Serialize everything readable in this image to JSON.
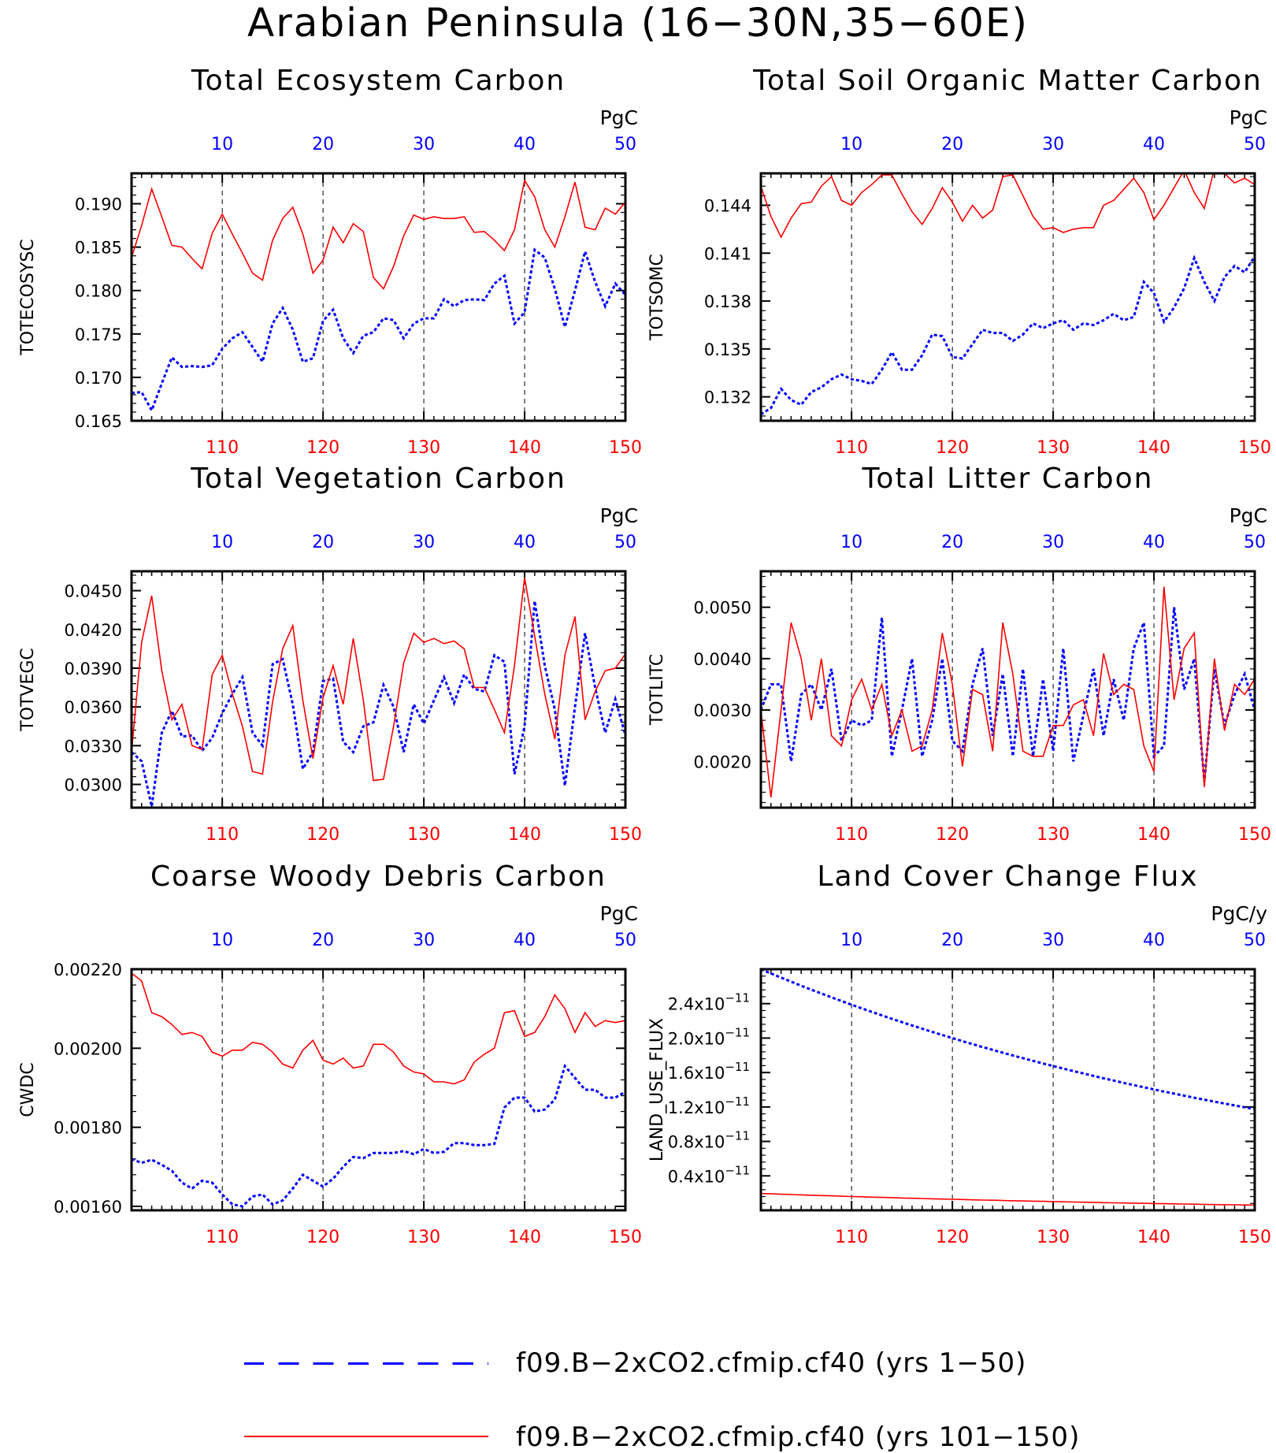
{
  "page_title": "Arabian Peninsula (16−30N,35−60E)",
  "colors": {
    "blue": "#0000ff",
    "red": "#ff0000",
    "grid": "#000000"
  },
  "legend": [
    {
      "label": "f09.B−2xCO2.cfmip.cf40 (yrs 1−50)",
      "color": "#0000ff",
      "style": "dashed"
    },
    {
      "label": "f09.B−2xCO2.cfmip.cf40 (yrs 101−150)",
      "color": "#ff0000",
      "style": "solid"
    }
  ],
  "chart_data": [
    {
      "type": "line",
      "title": "Total Ecosystem Carbon",
      "ylabel": "TOTECOSYSC",
      "units": "PgC",
      "top_axis_ticks": [
        "10",
        "20",
        "30",
        "40",
        "50"
      ],
      "bottom_axis_ticks": [
        "110",
        "120",
        "130",
        "140",
        "150"
      ],
      "top_xlim": [
        1,
        50
      ],
      "bottom_xlim": [
        101,
        150
      ],
      "ylim": [
        0.165,
        0.1935
      ],
      "yticks": [
        0.165,
        0.17,
        0.175,
        0.18,
        0.185,
        0.19
      ],
      "ytick_labels": [
        "0.165",
        "0.170",
        "0.175",
        "0.180",
        "0.185",
        "0.190"
      ],
      "ylog": false,
      "grid": "vertical-dashed",
      "series": [
        {
          "color": "blue",
          "style": "dotted",
          "values": [
            0.1682,
            0.1683,
            0.1662,
            0.1693,
            0.1723,
            0.1712,
            0.1713,
            0.1712,
            0.1714,
            0.1733,
            0.1745,
            0.1752,
            0.1735,
            0.1718,
            0.1762,
            0.178,
            0.1755,
            0.1718,
            0.1722,
            0.1765,
            0.1778,
            0.1745,
            0.1728,
            0.1748,
            0.1752,
            0.1768,
            0.1766,
            0.1745,
            0.1762,
            0.1768,
            0.1768,
            0.179,
            0.1782,
            0.1789,
            0.179,
            0.1789,
            0.1808,
            0.1817,
            0.1762,
            0.1775,
            0.1847,
            0.1838,
            0.1802,
            0.1758,
            0.18,
            0.1845,
            0.181,
            0.1782,
            0.1808,
            0.1795
          ]
        },
        {
          "color": "red",
          "style": "solid",
          "values": [
            0.1838,
            0.1875,
            0.1917,
            0.1885,
            0.1852,
            0.185,
            0.1837,
            0.1825,
            0.1866,
            0.1888,
            0.1865,
            0.1843,
            0.182,
            0.1812,
            0.1858,
            0.1883,
            0.1896,
            0.1865,
            0.182,
            0.1835,
            0.1873,
            0.1855,
            0.1877,
            0.1868,
            0.1815,
            0.1802,
            0.1828,
            0.1863,
            0.1887,
            0.1882,
            0.1885,
            0.1883,
            0.1883,
            0.1885,
            0.1867,
            0.1868,
            0.1858,
            0.1846,
            0.187,
            0.1927,
            0.1908,
            0.187,
            0.185,
            0.1885,
            0.1925,
            0.1873,
            0.187,
            0.1895,
            0.1888,
            0.1902
          ]
        }
      ]
    },
    {
      "type": "line",
      "title": "Total Soil Organic Matter Carbon",
      "ylabel": "TOTSOMC",
      "units": "PgC",
      "top_axis_ticks": [
        "10",
        "20",
        "30",
        "40",
        "50"
      ],
      "bottom_axis_ticks": [
        "110",
        "120",
        "130",
        "140",
        "150"
      ],
      "top_xlim": [
        1,
        50
      ],
      "bottom_xlim": [
        101,
        150
      ],
      "ylim": [
        0.1305,
        0.146
      ],
      "yticks": [
        0.132,
        0.135,
        0.138,
        0.141,
        0.144
      ],
      "ytick_labels": [
        "0.132",
        "0.135",
        "0.138",
        "0.141",
        "0.144"
      ],
      "ylog": false,
      "grid": "vertical-dashed",
      "series": [
        {
          "color": "blue",
          "style": "dotted",
          "values": [
            0.1309,
            0.1313,
            0.1325,
            0.1318,
            0.1315,
            0.1323,
            0.1326,
            0.1331,
            0.1334,
            0.1331,
            0.133,
            0.1328,
            0.1337,
            0.1348,
            0.1337,
            0.1337,
            0.1346,
            0.1359,
            0.1358,
            0.1345,
            0.1344,
            0.1353,
            0.1362,
            0.136,
            0.136,
            0.1355,
            0.1359,
            0.1366,
            0.1363,
            0.1366,
            0.1368,
            0.1362,
            0.1366,
            0.1365,
            0.1368,
            0.1372,
            0.1368,
            0.137,
            0.1392,
            0.1385,
            0.1367,
            0.1376,
            0.1388,
            0.1407,
            0.1392,
            0.138,
            0.1395,
            0.1402,
            0.1398,
            0.1408
          ]
        },
        {
          "color": "red",
          "style": "solid",
          "values": [
            0.1452,
            0.1433,
            0.142,
            0.1432,
            0.1441,
            0.1442,
            0.1452,
            0.1458,
            0.1443,
            0.144,
            0.1448,
            0.1453,
            0.1459,
            0.1459,
            0.1447,
            0.1436,
            0.1428,
            0.1438,
            0.1451,
            0.1442,
            0.143,
            0.144,
            0.1432,
            0.1437,
            0.1458,
            0.1459,
            0.1446,
            0.1433,
            0.1425,
            0.1426,
            0.1423,
            0.1425,
            0.1426,
            0.1426,
            0.144,
            0.1443,
            0.145,
            0.1457,
            0.1448,
            0.1431,
            0.144,
            0.1451,
            0.1462,
            0.1448,
            0.1438,
            0.1463,
            0.146,
            0.1454,
            0.1457,
            0.1453
          ]
        }
      ]
    },
    {
      "type": "line",
      "title": "Total Vegetation Carbon",
      "ylabel": "TOTVEGC",
      "units": "PgC",
      "top_axis_ticks": [
        "10",
        "20",
        "30",
        "40",
        "50"
      ],
      "bottom_axis_ticks": [
        "110",
        "120",
        "130",
        "140",
        "150"
      ],
      "top_xlim": [
        1,
        50
      ],
      "bottom_xlim": [
        101,
        150
      ],
      "ylim": [
        0.0282,
        0.0465
      ],
      "yticks": [
        0.03,
        0.033,
        0.036,
        0.039,
        0.042,
        0.045
      ],
      "ytick_labels": [
        "0.0300",
        "0.0330",
        "0.0360",
        "0.0390",
        "0.0420",
        "0.0450"
      ],
      "ylog": false,
      "grid": "vertical-dashed",
      "series": [
        {
          "color": "blue",
          "style": "dotted",
          "values": [
            0.0325,
            0.0318,
            0.0283,
            0.034,
            0.0357,
            0.0337,
            0.0338,
            0.0326,
            0.0336,
            0.0355,
            0.037,
            0.0383,
            0.034,
            0.033,
            0.0393,
            0.0397,
            0.0362,
            0.0312,
            0.0325,
            0.038,
            0.0382,
            0.0333,
            0.0325,
            0.0345,
            0.0348,
            0.0377,
            0.036,
            0.0325,
            0.0362,
            0.0347,
            0.0365,
            0.0383,
            0.0363,
            0.0385,
            0.0374,
            0.0372,
            0.04,
            0.0395,
            0.0308,
            0.0345,
            0.0442,
            0.0392,
            0.0358,
            0.0299,
            0.036,
            0.0417,
            0.0375,
            0.034,
            0.0366,
            0.0338
          ]
        },
        {
          "color": "red",
          "style": "solid",
          "values": [
            0.0325,
            0.041,
            0.0446,
            0.0388,
            0.035,
            0.0362,
            0.033,
            0.0327,
            0.0385,
            0.04,
            0.037,
            0.0345,
            0.031,
            0.0308,
            0.0364,
            0.0405,
            0.0423,
            0.0365,
            0.032,
            0.0367,
            0.0392,
            0.0362,
            0.0413,
            0.0365,
            0.0303,
            0.0304,
            0.0345,
            0.0394,
            0.0417,
            0.041,
            0.0413,
            0.0409,
            0.0411,
            0.0405,
            0.0375,
            0.0375,
            0.0358,
            0.034,
            0.0392,
            0.046,
            0.0415,
            0.037,
            0.0335,
            0.04,
            0.043,
            0.035,
            0.0372,
            0.0388,
            0.039,
            0.0401
          ]
        }
      ]
    },
    {
      "type": "line",
      "title": "Total Litter Carbon",
      "ylabel": "TOTLITC",
      "units": "PgC",
      "top_axis_ticks": [
        "10",
        "20",
        "30",
        "40",
        "50"
      ],
      "bottom_axis_ticks": [
        "110",
        "120",
        "130",
        "140",
        "150"
      ],
      "top_xlim": [
        1,
        50
      ],
      "bottom_xlim": [
        101,
        150
      ],
      "ylim": [
        0.0011,
        0.0057
      ],
      "yticks": [
        0.002,
        0.003,
        0.004,
        0.005
      ],
      "ytick_labels": [
        "0.0020",
        "0.0030",
        "0.0040",
        "0.0050"
      ],
      "ylog": false,
      "grid": "vertical-dashed",
      "series": [
        {
          "color": "blue",
          "style": "dotted",
          "values": [
            0.003,
            0.0035,
            0.0035,
            0.002,
            0.0033,
            0.0035,
            0.003,
            0.0038,
            0.0024,
            0.0028,
            0.0027,
            0.0028,
            0.0048,
            0.0021,
            0.003,
            0.004,
            0.0021,
            0.0028,
            0.004,
            0.0024,
            0.0022,
            0.0035,
            0.0042,
            0.0025,
            0.0037,
            0.0021,
            0.0038,
            0.0021,
            0.0036,
            0.0022,
            0.0042,
            0.002,
            0.0029,
            0.0038,
            0.0025,
            0.0036,
            0.0028,
            0.0042,
            0.0047,
            0.0021,
            0.0023,
            0.005,
            0.0034,
            0.004,
            0.0016,
            0.0038,
            0.0027,
            0.0033,
            0.0037,
            0.003
          ]
        },
        {
          "color": "red",
          "style": "solid",
          "values": [
            0.003,
            0.0013,
            0.003,
            0.0047,
            0.004,
            0.0028,
            0.004,
            0.0025,
            0.0023,
            0.0032,
            0.0036,
            0.003,
            0.0035,
            0.0025,
            0.003,
            0.0022,
            0.0023,
            0.003,
            0.0045,
            0.0035,
            0.0019,
            0.0034,
            0.0033,
            0.0022,
            0.0047,
            0.0037,
            0.0022,
            0.0021,
            0.0021,
            0.0027,
            0.0027,
            0.0031,
            0.0032,
            0.0025,
            0.0041,
            0.0033,
            0.0035,
            0.0034,
            0.0023,
            0.0018,
            0.0054,
            0.0032,
            0.0042,
            0.0045,
            0.0015,
            0.004,
            0.0026,
            0.0035,
            0.0033,
            0.0036
          ]
        }
      ]
    },
    {
      "type": "line",
      "title": "Coarse Woody Debris Carbon",
      "ylabel": "CWDC",
      "units": "PgC",
      "top_axis_ticks": [
        "10",
        "20",
        "30",
        "40",
        "50"
      ],
      "bottom_axis_ticks": [
        "110",
        "120",
        "130",
        "140",
        "150"
      ],
      "top_xlim": [
        1,
        50
      ],
      "bottom_xlim": [
        101,
        150
      ],
      "ylim": [
        0.00159,
        0.0022
      ],
      "yticks": [
        0.0016,
        0.0018,
        0.002,
        0.0022
      ],
      "ytick_labels": [
        "0.00160",
        "0.00180",
        "0.00200",
        "0.00220"
      ],
      "ylog": false,
      "grid": "vertical-dashed",
      "series": [
        {
          "color": "blue",
          "style": "dotted",
          "values": [
            0.00172,
            0.00171,
            0.001718,
            0.001705,
            0.00169,
            0.00166,
            0.001645,
            0.001665,
            0.00166,
            0.00163,
            0.001605,
            0.0016,
            0.001625,
            0.00163,
            0.001605,
            0.001615,
            0.001645,
            0.00168,
            0.001665,
            0.00165,
            0.00167,
            0.0017,
            0.001725,
            0.001722,
            0.001735,
            0.001735,
            0.001735,
            0.00174,
            0.001732,
            0.001745,
            0.001735,
            0.001738,
            0.00176,
            0.00176,
            0.001755,
            0.001755,
            0.001758,
            0.00185,
            0.001875,
            0.001875,
            0.00184,
            0.001845,
            0.00187,
            0.001955,
            0.001925,
            0.001895,
            0.001895,
            0.001875,
            0.001875,
            0.00189
          ]
        },
        {
          "color": "red",
          "style": "solid",
          "values": [
            0.00219,
            0.00217,
            0.00209,
            0.00208,
            0.00206,
            0.002035,
            0.00204,
            0.00203,
            0.00199,
            0.00198,
            0.001995,
            0.001995,
            0.002015,
            0.00201,
            0.00199,
            0.00196,
            0.00195,
            0.001995,
            0.00202,
            0.00197,
            0.00196,
            0.001975,
            0.00195,
            0.001955,
            0.00201,
            0.00201,
            0.00199,
            0.001955,
            0.00194,
            0.001935,
            0.001915,
            0.001915,
            0.00191,
            0.00192,
            0.001965,
            0.001985,
            0.002,
            0.00209,
            0.002095,
            0.00203,
            0.00204,
            0.00208,
            0.002135,
            0.0021,
            0.00204,
            0.00209,
            0.002055,
            0.00207,
            0.002065,
            0.00207
          ]
        }
      ]
    },
    {
      "type": "line",
      "title": "Land Cover Change Flux",
      "ylabel": "LAND_USE_FLUX",
      "units": "PgC/y",
      "top_axis_ticks": [
        "10",
        "20",
        "30",
        "40",
        "50"
      ],
      "bottom_axis_ticks": [
        "110",
        "120",
        "130",
        "140",
        "150"
      ],
      "top_xlim": [
        1,
        50
      ],
      "bottom_xlim": [
        101,
        150
      ],
      "ylim": [
        0.0,
        2.8e-11
      ],
      "yticks": [
        4e-12,
        8e-12,
        1.2e-11,
        1.6e-11,
        2e-11,
        2.4e-11
      ],
      "ytick_mantissa": [
        "0.4",
        "0.8",
        "1.2",
        "1.6",
        "2.0",
        "2.4"
      ],
      "ytick_base": "x10",
      "ytick_exponent": "−11",
      "ylog": false,
      "grid": "vertical-dashed",
      "series": [
        {
          "color": "blue",
          "style": "dotted",
          "values": [
            2.8e-11,
            2.75e-11,
            2.702e-11,
            2.655e-11,
            2.608e-11,
            2.562e-11,
            2.517e-11,
            2.473e-11,
            2.43e-11,
            2.387e-11,
            2.345e-11,
            2.304e-11,
            2.264e-11,
            2.224e-11,
            2.185e-11,
            2.147e-11,
            2.109e-11,
            2.072e-11,
            2.036e-11,
            2e-11,
            1.965e-11,
            1.93e-11,
            1.896e-11,
            1.863e-11,
            1.83e-11,
            1.798e-11,
            1.767e-11,
            1.736e-11,
            1.705e-11,
            1.675e-11,
            1.646e-11,
            1.617e-11,
            1.589e-11,
            1.561e-11,
            1.533e-11,
            1.507e-11,
            1.48e-11,
            1.454e-11,
            1.429e-11,
            1.404e-11,
            1.379e-11,
            1.355e-11,
            1.331e-11,
            1.308e-11,
            1.285e-11,
            1.262e-11,
            1.24e-11,
            1.218e-11,
            1.197e-11,
            1.176e-11
          ]
        },
        {
          "color": "red",
          "style": "solid",
          "values": [
            1.95e-12,
            1.91e-12,
            1.87e-12,
            1.83e-12,
            1.79e-12,
            1.75e-12,
            1.71e-12,
            1.68e-12,
            1.64e-12,
            1.6e-12,
            1.57e-12,
            1.53e-12,
            1.5e-12,
            1.47e-12,
            1.43e-12,
            1.4e-12,
            1.37e-12,
            1.34e-12,
            1.31e-12,
            1.28e-12,
            1.25e-12,
            1.22e-12,
            1.19e-12,
            1.17e-12,
            1.14e-12,
            1.11e-12,
            1.09e-12,
            1.06e-12,
            1.04e-12,
            1.01e-12,
            9.9e-13,
            9.6e-13,
            9.4e-13,
            9.2e-13,
            8.9e-13,
            8.7e-13,
            8.5e-13,
            8.3e-13,
            8.1e-13,
            7.9e-13,
            7.7e-13,
            7.5e-13,
            7.3e-13,
            7.1e-13,
            6.9e-13,
            6.7e-13,
            6.5e-13,
            6.4e-13,
            6.2e-13,
            6e-13
          ]
        }
      ]
    }
  ]
}
